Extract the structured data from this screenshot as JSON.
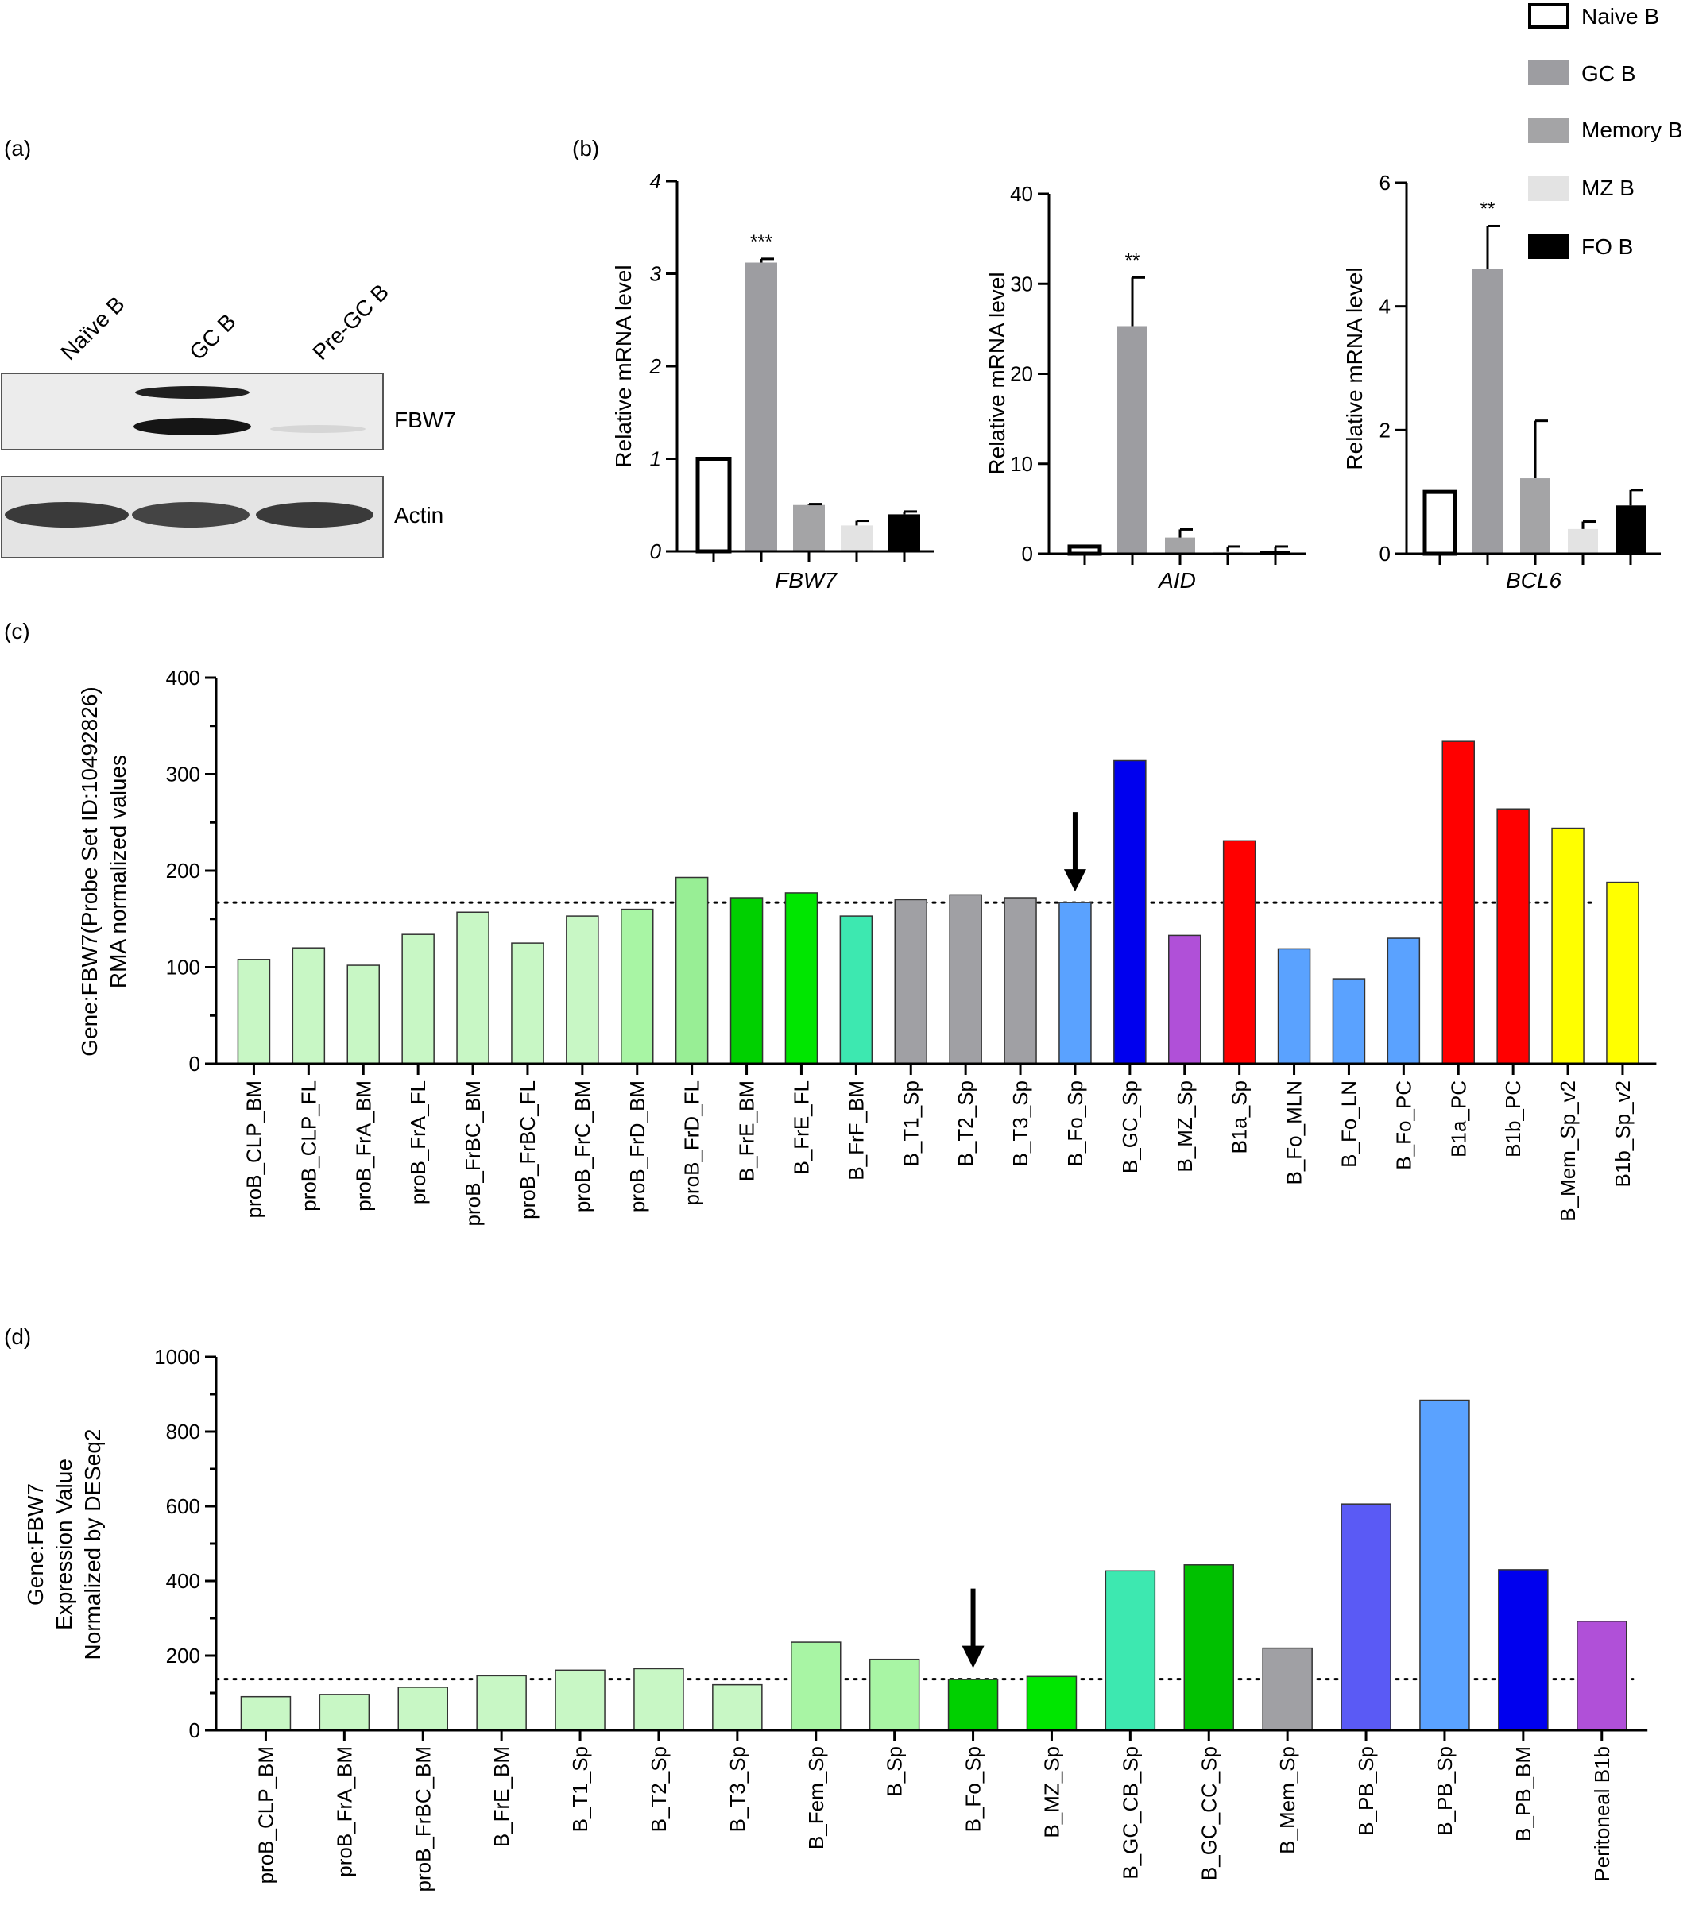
{
  "panels": {
    "a": "(a)",
    "b": "(b)",
    "c": "(c)",
    "d": "(d)"
  },
  "colors": {
    "naive": "#ffffff",
    "gc": "#9d9da1",
    "memory": "#a4a4a6",
    "mz": "#e3e3e3",
    "fo": "#000000",
    "blot_bg": "#ececec",
    "blot_band": "#202020"
  },
  "western": {
    "lanes": [
      "Naïve B",
      "GC B",
      "Pre-GC B"
    ],
    "blots": [
      "FBW7",
      "Actin"
    ]
  },
  "legend": {
    "items": [
      {
        "label": "Naive B",
        "color": "#ffffff"
      },
      {
        "label": "GC B",
        "color": "#9d9da1"
      },
      {
        "label": "Memory B",
        "color": "#a4a4a6"
      },
      {
        "label": "MZ B",
        "color": "#e3e3e3"
      },
      {
        "label": "FO B",
        "color": "#000000"
      }
    ]
  },
  "chart_data": [
    {
      "id": "b1",
      "type": "bar",
      "title": "",
      "xlabel": "FBW7",
      "ylabel": "Relative mRNA level",
      "ylim": [
        0,
        4
      ],
      "yticks": [
        0,
        1,
        2,
        3,
        4
      ],
      "categories": [
        "Naive B",
        "GC B",
        "Memory B",
        "MZ B",
        "FO B"
      ],
      "values": [
        1.0,
        3.12,
        0.5,
        0.28,
        0.4
      ],
      "errors": [
        0,
        0.04,
        0.01,
        0.05,
        0.03
      ],
      "colors": [
        "#ffffff",
        "#9d9da1",
        "#a4a4a6",
        "#e3e3e3",
        "#000000"
      ],
      "annotations": [
        {
          "category": "GC B",
          "text": "***"
        }
      ]
    },
    {
      "id": "b2",
      "type": "bar",
      "title": "",
      "xlabel": "AID",
      "ylabel": "Relative mRNA level",
      "ylim": [
        0,
        40
      ],
      "yticks": [
        0,
        10,
        20,
        30,
        40
      ],
      "categories": [
        "Naive B",
        "GC B",
        "Memory B",
        "MZ B",
        "FO B"
      ],
      "values": [
        0.8,
        25.3,
        1.8,
        0.2,
        0.3
      ],
      "errors": [
        0,
        5.4,
        0.9,
        0.6,
        0.5
      ],
      "colors": [
        "#ffffff",
        "#9d9da1",
        "#a4a4a6",
        "#e3e3e3",
        "#000000"
      ],
      "annotations": [
        {
          "category": "GC B",
          "text": "**"
        }
      ]
    },
    {
      "id": "b3",
      "type": "bar",
      "title": "",
      "xlabel": "BCL6",
      "ylabel": "Relative mRNA level",
      "ylim": [
        0,
        6
      ],
      "yticks": [
        0,
        2,
        4,
        6
      ],
      "categories": [
        "Naive B",
        "GC B",
        "Memory B",
        "MZ B",
        "FO B"
      ],
      "values": [
        1.0,
        4.6,
        1.22,
        0.4,
        0.78
      ],
      "errors": [
        0,
        0.7,
        0.93,
        0.12,
        0.25
      ],
      "colors": [
        "#ffffff",
        "#9d9da1",
        "#a4a4a6",
        "#e3e3e3",
        "#000000"
      ],
      "annotations": [
        {
          "category": "GC B",
          "text": "**"
        }
      ]
    },
    {
      "id": "c",
      "type": "bar",
      "title": "",
      "xlabel": "",
      "ylabel_lines": [
        "Gene:FBW7(Probe Set ID:10492826)",
        "RMA normalized values"
      ],
      "ylim": [
        0,
        400
      ],
      "yticks": [
        0,
        100,
        200,
        300,
        400
      ],
      "reference_line": 167,
      "arrow_category": "B_Fo_Sp",
      "categories": [
        "proB_CLP_BM",
        "proB_CLP_FL",
        "proB_FrA_BM",
        "proB_FrA_FL",
        "proB_FrBC_BM",
        "proB_FrBC_FL",
        "proB_FrC_BM",
        "proB_FrD_BM",
        "proB_FrD_FL",
        "B_FrE_BM",
        "B_FrE_FL",
        "B_FrF_BM",
        "B_T1_Sp",
        "B_T2_Sp",
        "B_T3_Sp",
        "B_Fo_Sp",
        "B_GC_Sp",
        "B_MZ_Sp",
        "B1a_Sp",
        "B_Fo_MLN",
        "B_Fo_LN",
        "B_Fo_PC",
        "B1a_PC",
        "B1b_PC",
        "B_Mem_Sp_v2",
        "B1b_Sp_v2"
      ],
      "values": [
        108,
        120,
        102,
        134,
        157,
        125,
        153,
        160,
        193,
        172,
        177,
        153,
        170,
        175,
        172,
        167,
        314,
        133,
        231,
        119,
        88,
        130,
        334,
        264,
        244,
        188
      ],
      "colors": [
        "#c8f7c5",
        "#c8f7c5",
        "#c8f7c5",
        "#c8f7c5",
        "#c8f7c5",
        "#c8f7c5",
        "#c8f7c5",
        "#a8f5a4",
        "#98ee95",
        "#00d000",
        "#00e600",
        "#3de8b0",
        "#a0a0a4",
        "#a0a0a4",
        "#a0a0a4",
        "#5aa2ff",
        "#0000ee",
        "#b050d8",
        "#ff0000",
        "#5aa2ff",
        "#5aa2ff",
        "#5aa2ff",
        "#ff0000",
        "#ff0000",
        "#ffff00",
        "#ffff00"
      ]
    },
    {
      "id": "d",
      "type": "bar",
      "title": "",
      "xlabel": "",
      "ylabel_lines": [
        "Gene:FBW7",
        "Expression Value",
        "Normalized by DESeq2"
      ],
      "ylim": [
        0,
        1000
      ],
      "yticks": [
        0,
        200,
        400,
        600,
        800,
        1000
      ],
      "reference_line": 137,
      "arrow_category": "B_Fo_Sp",
      "categories": [
        "proB_CLP_BM",
        "proB_FrA_BM",
        "proB_FrBC_BM",
        "B_FrE_BM",
        "B_T1_Sp",
        "B_T2_Sp",
        "B_T3_Sp",
        "B_Fem_Sp",
        "B_Sp",
        "B_Fo_Sp",
        "B_MZ_Sp",
        "B_GC_CB_Sp",
        "B_GC_CC_Sp",
        "B_Mem_Sp",
        "B_PB_Sp",
        "B_PB_Sp",
        "B_PB_BM",
        "Peritoneal B1b"
      ],
      "values": [
        90,
        96,
        115,
        146,
        161,
        165,
        122,
        236,
        190,
        136,
        144,
        427,
        443,
        220,
        606,
        884,
        430,
        292
      ],
      "colors": [
        "#c8f7c5",
        "#c8f7c5",
        "#c8f7c5",
        "#c8f7c5",
        "#c8f7c5",
        "#c8f7c5",
        "#c8f7c5",
        "#a8f5a4",
        "#a8f5a4",
        "#00d000",
        "#00e600",
        "#3de8b0",
        "#00c000",
        "#a0a0a4",
        "#5a5af5",
        "#5aa2ff",
        "#0000ee",
        "#b050d8"
      ]
    }
  ]
}
